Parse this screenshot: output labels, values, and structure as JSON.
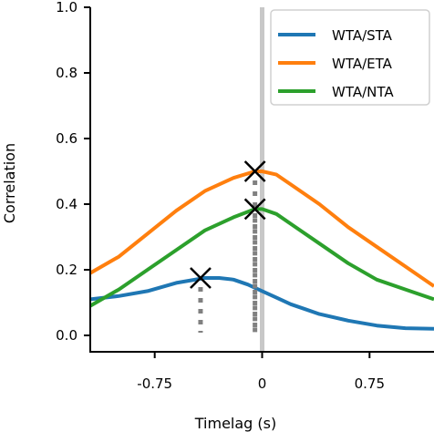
{
  "chart_data": {
    "type": "line",
    "xlabel": "Timelag (s)",
    "ylabel": "Correlation",
    "xlim": [
      -1.2,
      1.2
    ],
    "ylim": [
      -0.05,
      1.0
    ],
    "x_ticks": [
      -0.75,
      0,
      0.75
    ],
    "x_tick_labels": [
      "-0.75",
      "0",
      "0.75"
    ],
    "y_ticks": [
      0.0,
      0.2,
      0.4,
      0.6,
      0.8,
      1.0
    ],
    "y_tick_labels": [
      "0.0",
      "0.2",
      "0.4",
      "0.6",
      "0.8",
      "1.0"
    ],
    "grid": false,
    "legend_position": "top-right",
    "zero_line": {
      "x": 0,
      "color": "#c8c8c8"
    },
    "series": [
      {
        "name": "WTA/STA",
        "color": "#1f77b4",
        "x": [
          -1.2,
          -1.0,
          -0.8,
          -0.6,
          -0.4,
          -0.3,
          -0.2,
          -0.1,
          0.0,
          0.1,
          0.2,
          0.3,
          0.4,
          0.6,
          0.8,
          1.0,
          1.2
        ],
        "y": [
          0.11,
          0.12,
          0.135,
          0.16,
          0.175,
          0.175,
          0.17,
          0.155,
          0.135,
          0.115,
          0.095,
          0.08,
          0.065,
          0.045,
          0.03,
          0.022,
          0.02
        ]
      },
      {
        "name": "WTA/ETA",
        "color": "#ff7f0e",
        "x": [
          -1.2,
          -1.0,
          -0.8,
          -0.6,
          -0.4,
          -0.2,
          -0.05,
          0.0,
          0.1,
          0.2,
          0.4,
          0.6,
          0.8,
          1.0,
          1.2
        ],
        "y": [
          0.19,
          0.24,
          0.31,
          0.38,
          0.44,
          0.48,
          0.5,
          0.5,
          0.49,
          0.46,
          0.4,
          0.33,
          0.27,
          0.21,
          0.15
        ]
      },
      {
        "name": "WTA/NTA",
        "color": "#2ca02c",
        "x": [
          -1.2,
          -1.0,
          -0.8,
          -0.6,
          -0.4,
          -0.2,
          -0.05,
          0.0,
          0.1,
          0.2,
          0.4,
          0.6,
          0.8,
          1.0,
          1.2
        ],
        "y": [
          0.09,
          0.14,
          0.2,
          0.26,
          0.32,
          0.36,
          0.385,
          0.385,
          0.37,
          0.34,
          0.28,
          0.22,
          0.17,
          0.14,
          0.11
        ]
      }
    ],
    "peaks": [
      {
        "series": "WTA/STA",
        "x": -0.43,
        "y": 0.175
      },
      {
        "series": "WTA/ETA",
        "x": -0.05,
        "y": 0.5
      },
      {
        "series": "WTA/NTA",
        "x": -0.05,
        "y": 0.385
      }
    ]
  }
}
